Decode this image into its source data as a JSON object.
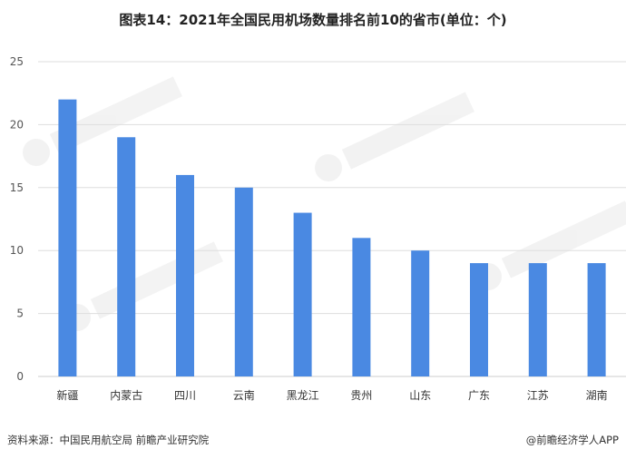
{
  "chart_data": {
    "type": "bar",
    "title": "图表14：2021年全国民用机场数量排名前10的省市(单位：个)",
    "categories": [
      "新疆",
      "内蒙古",
      "四川",
      "云南",
      "黑龙江",
      "贵州",
      "山东",
      "广东",
      "江苏",
      "湖南"
    ],
    "values": [
      22,
      19,
      16,
      15,
      13,
      11,
      10,
      9,
      9,
      9
    ],
    "ylim": [
      0,
      25
    ],
    "yticks": [
      0,
      5,
      10,
      15,
      20,
      25
    ],
    "xlabel": "",
    "ylabel": "",
    "grid": true,
    "legend": "none",
    "bar_color": "#4a89e2"
  },
  "footer": {
    "source": "资料来源：中国民用航空局 前瞻产业研究院",
    "credit": "@前瞻经济学人APP"
  }
}
